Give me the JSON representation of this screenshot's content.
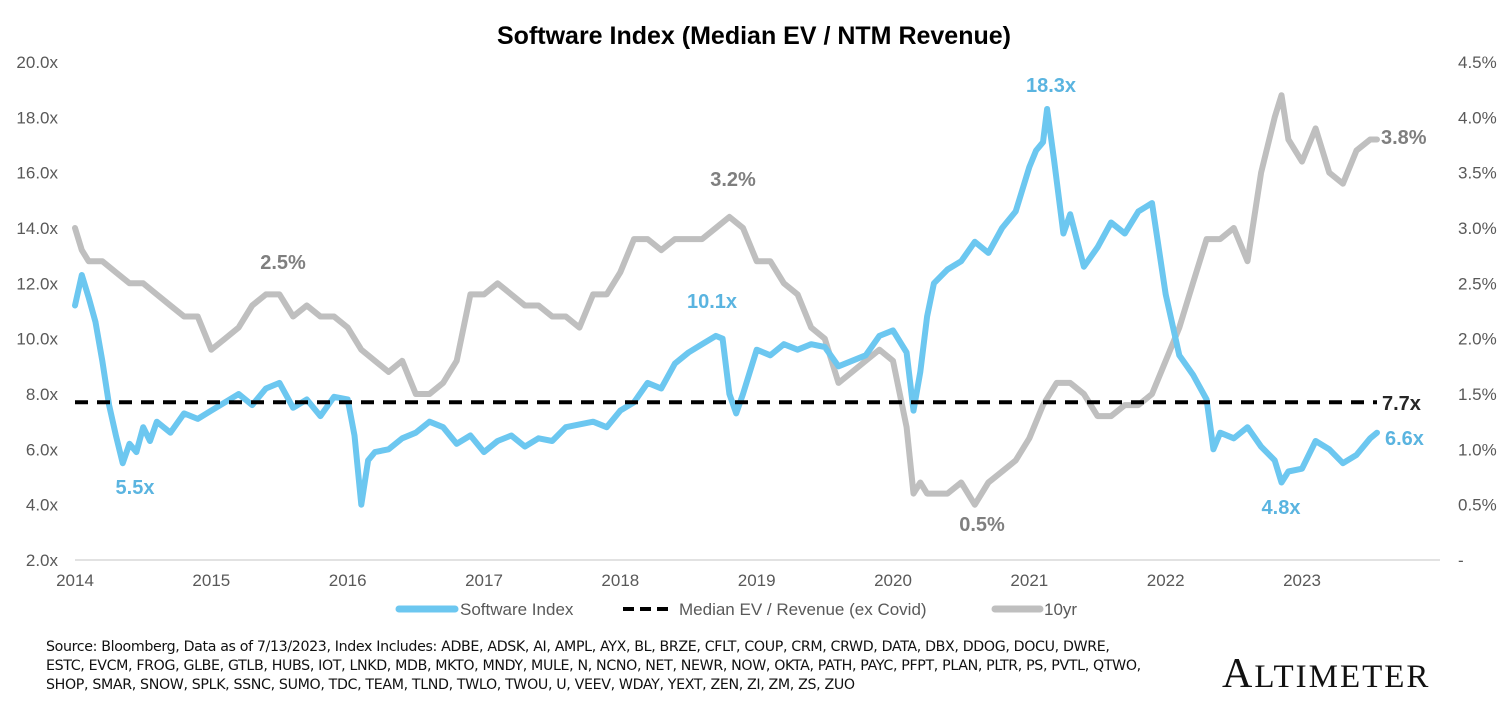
{
  "chart_data": {
    "type": "line",
    "title": "Software Index (Median EV / NTM Revenue)",
    "xlabel": "",
    "ylabel_left": "",
    "ylabel_right": "",
    "x_ticks": [
      "2014",
      "2015",
      "2016",
      "2017",
      "2018",
      "2019",
      "2020",
      "2021",
      "2022",
      "2023"
    ],
    "xlim": [
      2014,
      2024
    ],
    "left_axis": {
      "ylim": [
        2.0,
        20.0
      ],
      "ticks": [
        "20.0x",
        "18.0x",
        "16.0x",
        "14.0x",
        "12.0x",
        "10.0x",
        "8.0x",
        "6.0x",
        "4.0x",
        "2.0x"
      ]
    },
    "right_axis": {
      "ylim": [
        0,
        4.5
      ],
      "ticks": [
        "4.5%",
        "4.0%",
        "3.5%",
        "3.0%",
        "2.5%",
        "2.0%",
        "1.5%",
        "1.0%",
        "0.5%",
        "-"
      ]
    },
    "grid": false,
    "legend_position": "bottom",
    "series": [
      {
        "name": "Software Index",
        "axis": "left",
        "color": "#6CC7F0",
        "x": [
          2014.0,
          2014.05,
          2014.1,
          2014.15,
          2014.2,
          2014.25,
          2014.3,
          2014.35,
          2014.4,
          2014.45,
          2014.5,
          2014.55,
          2014.6,
          2014.7,
          2014.8,
          2014.9,
          2015.0,
          2015.1,
          2015.2,
          2015.3,
          2015.4,
          2015.5,
          2015.6,
          2015.7,
          2015.8,
          2015.9,
          2016.0,
          2016.05,
          2016.1,
          2016.15,
          2016.2,
          2016.3,
          2016.4,
          2016.5,
          2016.6,
          2016.7,
          2016.8,
          2016.9,
          2017.0,
          2017.1,
          2017.2,
          2017.3,
          2017.4,
          2017.5,
          2017.6,
          2017.7,
          2017.8,
          2017.9,
          2018.0,
          2018.1,
          2018.2,
          2018.3,
          2018.4,
          2018.5,
          2018.6,
          2018.7,
          2018.75,
          2018.8,
          2018.85,
          2018.9,
          2019.0,
          2019.1,
          2019.2,
          2019.3,
          2019.4,
          2019.5,
          2019.6,
          2019.7,
          2019.8,
          2019.9,
          2020.0,
          2020.1,
          2020.15,
          2020.2,
          2020.25,
          2020.3,
          2020.4,
          2020.5,
          2020.6,
          2020.7,
          2020.8,
          2020.9,
          2021.0,
          2021.05,
          2021.1,
          2021.13,
          2021.18,
          2021.25,
          2021.3,
          2021.4,
          2021.5,
          2021.6,
          2021.7,
          2021.8,
          2021.9,
          2022.0,
          2022.1,
          2022.2,
          2022.3,
          2022.35,
          2022.4,
          2022.5,
          2022.6,
          2022.7,
          2022.8,
          2022.85,
          2022.9,
          2023.0,
          2023.1,
          2023.2,
          2023.3,
          2023.4,
          2023.5,
          2023.55
        ],
        "values": [
          11.2,
          12.3,
          11.5,
          10.6,
          9.2,
          7.6,
          6.5,
          5.5,
          6.2,
          5.9,
          6.8,
          6.3,
          7.0,
          6.6,
          7.3,
          7.1,
          7.4,
          7.7,
          8.0,
          7.6,
          8.2,
          8.4,
          7.5,
          7.8,
          7.2,
          7.9,
          7.8,
          6.5,
          4.0,
          5.6,
          5.9,
          6.0,
          6.4,
          6.6,
          7.0,
          6.8,
          6.2,
          6.5,
          5.9,
          6.3,
          6.5,
          6.1,
          6.4,
          6.3,
          6.8,
          6.9,
          7.0,
          6.8,
          7.4,
          7.7,
          8.4,
          8.2,
          9.1,
          9.5,
          9.8,
          10.1,
          10.0,
          8.0,
          7.3,
          8.0,
          9.6,
          9.4,
          9.8,
          9.6,
          9.8,
          9.7,
          9.0,
          9.2,
          9.4,
          10.1,
          10.3,
          9.5,
          7.4,
          8.8,
          10.8,
          12.0,
          12.5,
          12.8,
          13.5,
          13.1,
          14.0,
          14.6,
          16.2,
          16.8,
          17.1,
          18.3,
          16.5,
          13.8,
          14.5,
          12.6,
          13.3,
          14.2,
          13.8,
          14.6,
          14.9,
          11.6,
          9.4,
          8.7,
          7.8,
          6.0,
          6.6,
          6.4,
          6.8,
          6.1,
          5.6,
          4.8,
          5.2,
          5.3,
          6.3,
          6.0,
          5.5,
          5.8,
          6.4,
          6.6
        ]
      },
      {
        "name": "Median EV / Revenue (ex Covid)",
        "axis": "left",
        "color": "#000000",
        "style": "dashed",
        "x": [
          2014.0,
          2023.55
        ],
        "values": [
          7.7,
          7.7
        ]
      },
      {
        "name": "10yr",
        "axis": "right",
        "color": "#BFBFBF",
        "x": [
          2014.0,
          2014.05,
          2014.1,
          2014.2,
          2014.3,
          2014.4,
          2014.5,
          2014.6,
          2014.7,
          2014.8,
          2014.9,
          2015.0,
          2015.1,
          2015.2,
          2015.3,
          2015.4,
          2015.5,
          2015.6,
          2015.7,
          2015.8,
          2015.9,
          2016.0,
          2016.1,
          2016.2,
          2016.3,
          2016.4,
          2016.5,
          2016.6,
          2016.7,
          2016.8,
          2016.9,
          2017.0,
          2017.1,
          2017.2,
          2017.3,
          2017.4,
          2017.5,
          2017.6,
          2017.7,
          2017.8,
          2017.9,
          2018.0,
          2018.1,
          2018.2,
          2018.3,
          2018.4,
          2018.5,
          2018.6,
          2018.7,
          2018.8,
          2018.9,
          2019.0,
          2019.1,
          2019.2,
          2019.3,
          2019.4,
          2019.5,
          2019.6,
          2019.7,
          2019.8,
          2019.9,
          2020.0,
          2020.1,
          2020.15,
          2020.2,
          2020.25,
          2020.3,
          2020.4,
          2020.5,
          2020.6,
          2020.7,
          2020.8,
          2020.9,
          2021.0,
          2021.1,
          2021.2,
          2021.3,
          2021.4,
          2021.5,
          2021.6,
          2021.7,
          2021.8,
          2021.9,
          2022.0,
          2022.1,
          2022.2,
          2022.3,
          2022.4,
          2022.5,
          2022.6,
          2022.7,
          2022.8,
          2022.85,
          2022.9,
          2023.0,
          2023.1,
          2023.2,
          2023.3,
          2023.4,
          2023.5,
          2023.55
        ],
        "values": [
          3.0,
          2.8,
          2.7,
          2.7,
          2.6,
          2.5,
          2.5,
          2.4,
          2.3,
          2.2,
          2.2,
          1.9,
          2.0,
          2.1,
          2.3,
          2.4,
          2.4,
          2.2,
          2.3,
          2.2,
          2.2,
          2.1,
          1.9,
          1.8,
          1.7,
          1.8,
          1.5,
          1.5,
          1.6,
          1.8,
          2.4,
          2.4,
          2.5,
          2.4,
          2.3,
          2.3,
          2.2,
          2.2,
          2.1,
          2.4,
          2.4,
          2.6,
          2.9,
          2.9,
          2.8,
          2.9,
          2.9,
          2.9,
          3.0,
          3.1,
          3.0,
          2.7,
          2.7,
          2.5,
          2.4,
          2.1,
          2.0,
          1.6,
          1.7,
          1.8,
          1.9,
          1.8,
          1.2,
          0.6,
          0.7,
          0.6,
          0.6,
          0.6,
          0.7,
          0.5,
          0.7,
          0.8,
          0.9,
          1.1,
          1.4,
          1.6,
          1.6,
          1.5,
          1.3,
          1.3,
          1.4,
          1.4,
          1.5,
          1.8,
          2.1,
          2.5,
          2.9,
          2.9,
          3.0,
          2.7,
          3.5,
          4.0,
          4.2,
          3.8,
          3.6,
          3.9,
          3.5,
          3.4,
          3.7,
          3.8,
          3.8
        ]
      }
    ],
    "annotations": [
      {
        "text": "5.5x",
        "series": "Software Index",
        "color": "#5AB4E0"
      },
      {
        "text": "10.1x",
        "series": "Software Index",
        "color": "#5AB4E0"
      },
      {
        "text": "18.3x",
        "series": "Software Index",
        "color": "#5AB4E0"
      },
      {
        "text": "4.8x",
        "series": "Software Index",
        "color": "#5AB4E0"
      },
      {
        "text": "6.6x",
        "series": "Software Index",
        "color": "#5AB4E0"
      },
      {
        "text": "7.7x",
        "series": "Median EV / Revenue (ex Covid)",
        "color": "#262626"
      },
      {
        "text": "2.5%",
        "series": "10yr",
        "color": "#7F7F7F"
      },
      {
        "text": "3.2%",
        "series": "10yr",
        "color": "#7F7F7F"
      },
      {
        "text": "0.5%",
        "series": "10yr",
        "color": "#7F7F7F"
      },
      {
        "text": "3.8%",
        "series": "10yr",
        "color": "#7F7F7F"
      }
    ]
  },
  "footer": {
    "source": "Source: Bloomberg, Data as of 7/13/2023, Index Includes: ADBE, ADSK, AI, AMPL, AYX, BL, BRZE, CFLT, COUP, CRM, CRWD, DATA, DBX, DDOG, DOCU, DWRE, ESTC, EVCM, FROG, GLBE, GTLB, HUBS, IOT, LNKD, MDB, MKTO, MNDY, MULE, N, NCNO, NET, NEWR, NOW, OKTA, PATH, PAYC, PFPT, PLAN, PLTR, PS, PVTL, QTWO, SHOP, SMAR, SNOW, SPLK, SSNC, SUMO, TDC, TEAM, TLND, TWLO, TWOU, U, VEEV, WDAY, YEXT, ZEN, ZI, ZM, ZS, ZUO",
    "logo_first": "A",
    "logo_rest": "LTIMETER"
  }
}
